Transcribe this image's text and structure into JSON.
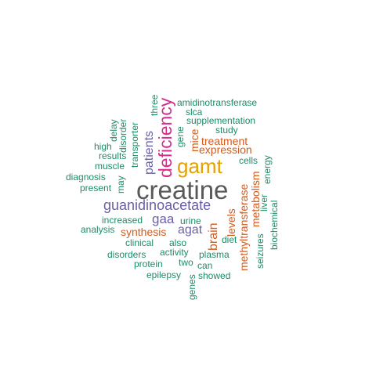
{
  "colors": {
    "grey": "#595959",
    "orange": "#E6A000",
    "pink": "#D62C8C",
    "purple": "#6A5FA8",
    "rust": "#D45A1A",
    "green": "#1B8C6A"
  },
  "words": [
    {
      "text": "creatine",
      "color": "grey"
    },
    {
      "text": "gamt",
      "color": "orange"
    },
    {
      "text": "deficiency",
      "color": "pink"
    },
    {
      "text": "guanidinoacetate",
      "color": "purple"
    },
    {
      "text": "patients",
      "color": "purple"
    },
    {
      "text": "gaa",
      "color": "purple"
    },
    {
      "text": "agat",
      "color": "purple"
    },
    {
      "text": "brain",
      "color": "rust"
    },
    {
      "text": "synthesis",
      "color": "rust"
    },
    {
      "text": "mice",
      "color": "rust"
    },
    {
      "text": "treatment",
      "color": "rust"
    },
    {
      "text": "expression",
      "color": "rust"
    },
    {
      "text": "levels",
      "color": "rust"
    },
    {
      "text": "methyltransferase",
      "color": "rust"
    },
    {
      "text": "metabolism",
      "color": "rust"
    },
    {
      "text": "amidinotransferase",
      "color": "green"
    },
    {
      "text": "slca",
      "color": "green"
    },
    {
      "text": "supplementation",
      "color": "green"
    },
    {
      "text": "study",
      "color": "green"
    },
    {
      "text": "three",
      "color": "green"
    },
    {
      "text": "delay",
      "color": "green"
    },
    {
      "text": "disorder",
      "color": "green"
    },
    {
      "text": "transporter",
      "color": "green"
    },
    {
      "text": "gene",
      "color": "green"
    },
    {
      "text": "high",
      "color": "green"
    },
    {
      "text": "results",
      "color": "green"
    },
    {
      "text": "muscle",
      "color": "green"
    },
    {
      "text": "diagnosis",
      "color": "green"
    },
    {
      "text": "present",
      "color": "green"
    },
    {
      "text": "may",
      "color": "green"
    },
    {
      "text": "cells",
      "color": "green"
    },
    {
      "text": "energy",
      "color": "green"
    },
    {
      "text": "liver",
      "color": "green"
    },
    {
      "text": "increased",
      "color": "green"
    },
    {
      "text": "urine",
      "color": "green"
    },
    {
      "text": "analysis",
      "color": "green"
    },
    {
      "text": "clinical",
      "color": "green"
    },
    {
      "text": "also",
      "color": "green"
    },
    {
      "text": "diet",
      "color": "green"
    },
    {
      "text": "disorders",
      "color": "green"
    },
    {
      "text": "activity",
      "color": "green"
    },
    {
      "text": "plasma",
      "color": "green"
    },
    {
      "text": "protein",
      "color": "green"
    },
    {
      "text": "two",
      "color": "green"
    },
    {
      "text": "can",
      "color": "green"
    },
    {
      "text": "seizures",
      "color": "green"
    },
    {
      "text": "biochemical",
      "color": "green"
    },
    {
      "text": "epilepsy",
      "color": "green"
    },
    {
      "text": "showed",
      "color": "green"
    },
    {
      "text": "genes",
      "color": "green"
    }
  ]
}
